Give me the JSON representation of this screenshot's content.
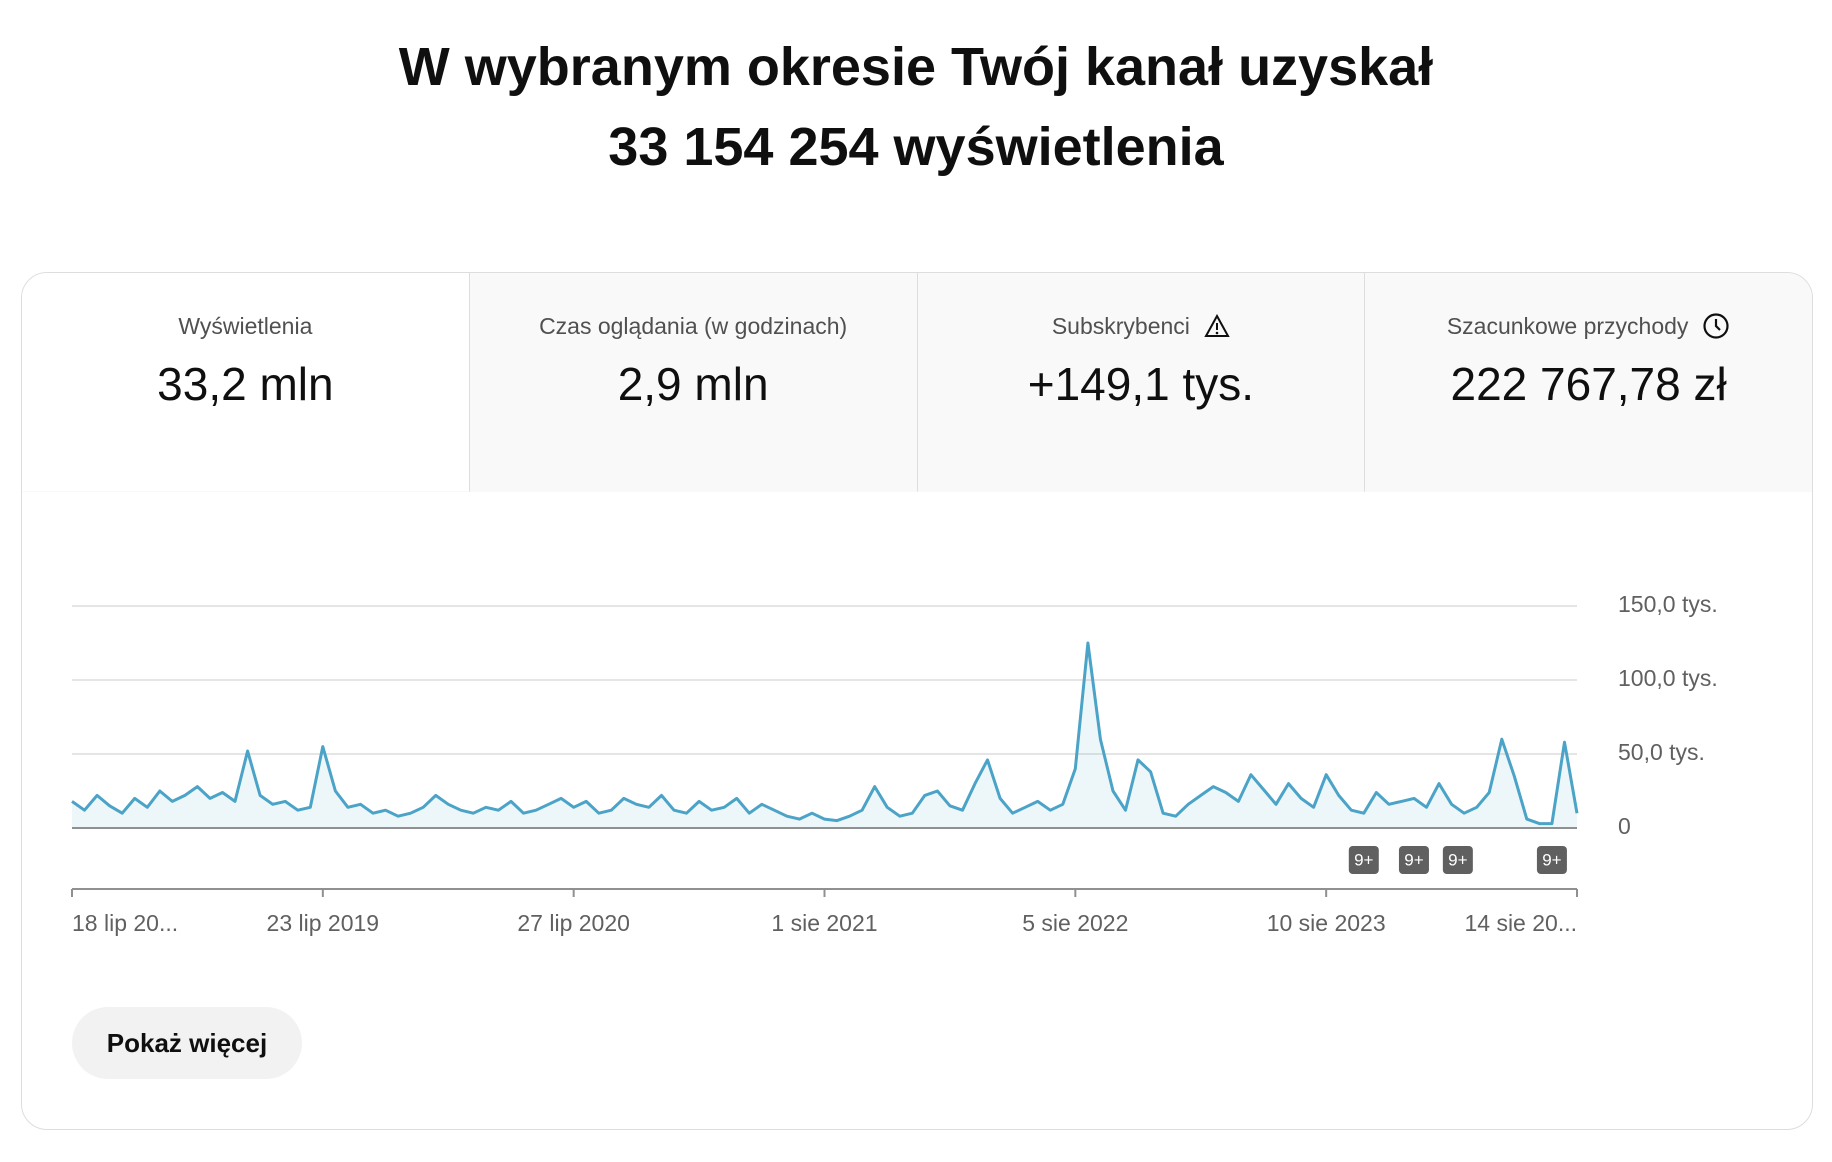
{
  "header": {
    "title_line1": "W wybranym okresie Twój kanał uzyskał",
    "title_line2": "33 154 254 wyświetlenia"
  },
  "metrics": [
    {
      "label": "Wyświetlenia",
      "value": "33,2 mln"
    },
    {
      "label": "Czas oglądania (w godzinach)",
      "value": "2,9 mln"
    },
    {
      "label": "Subskrybenci",
      "value": "+149,1 tys."
    },
    {
      "label": "Szacunkowe przychody",
      "value": "222 767,78 zł"
    }
  ],
  "chart_data": {
    "type": "line",
    "color": "#4ba3c7",
    "grid": true,
    "values": [
      18,
      12,
      22,
      15,
      10,
      20,
      14,
      25,
      18,
      22,
      28,
      20,
      24,
      18,
      52,
      22,
      16,
      18,
      12,
      14,
      55,
      25,
      14,
      16,
      10,
      12,
      8,
      10,
      14,
      22,
      16,
      12,
      10,
      14,
      12,
      18,
      10,
      12,
      16,
      20,
      14,
      18,
      10,
      12,
      20,
      16,
      14,
      22,
      12,
      10,
      18,
      12,
      14,
      20,
      10,
      16,
      12,
      8,
      6,
      10,
      6,
      5,
      8,
      12,
      28,
      14,
      8,
      10,
      22,
      25,
      15,
      12,
      30,
      46,
      20,
      10,
      14,
      18,
      12,
      16,
      40,
      125,
      60,
      25,
      12,
      46,
      38,
      10,
      8,
      16,
      22,
      28,
      24,
      18,
      36,
      26,
      16,
      30,
      20,
      14,
      36,
      22,
      12,
      10,
      24,
      16,
      18,
      20,
      14,
      30,
      16,
      10,
      14,
      24,
      60,
      35,
      6,
      3,
      3,
      58,
      10
    ],
    "xlim": [
      0,
      120
    ],
    "xticks": [
      {
        "value": 0,
        "label": "18 lip 20..."
      },
      {
        "value": 20,
        "label": "23 lip 2019"
      },
      {
        "value": 40,
        "label": "27 lip 2020"
      },
      {
        "value": 60,
        "label": "1 sie 2021"
      },
      {
        "value": 80,
        "label": "5 sie 2022"
      },
      {
        "value": 100,
        "label": "10 sie 2023"
      },
      {
        "value": 120,
        "label": "14 sie 20..."
      }
    ],
    "ylim": [
      0,
      150
    ],
    "yticks": [
      0,
      {
        "value": 50,
        "label": "50,0 tys."
      },
      {
        "value": 100,
        "label": "100,0 tys."
      },
      {
        "value": 150,
        "label": "150,0 tys."
      }
    ],
    "annotations": [
      {
        "x": 103,
        "label": "9+"
      },
      {
        "x": 107,
        "label": "9+"
      },
      {
        "x": 110.5,
        "label": "9+"
      },
      {
        "x": 118,
        "label": "9+"
      }
    ]
  },
  "button": "Pokaż więcej"
}
